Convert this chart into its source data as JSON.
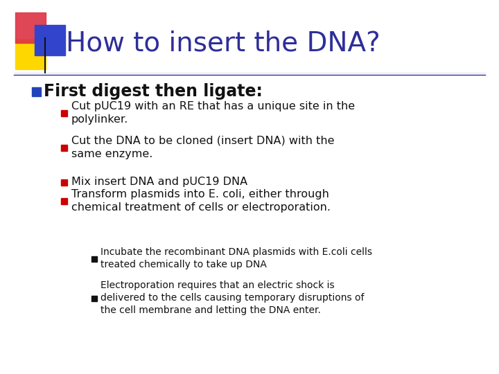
{
  "title": "How to insert the DNA?",
  "title_color": "#2E2E99",
  "bg_color": "#FFFFFF",
  "title_fontsize": 28,
  "bullet1": "First digest then ligate:",
  "bullet1_color": "#111111",
  "bullet1_fontsize": 17,
  "sub_bullets": [
    "Cut pUC19 with an RE that has a unique site in the\npolylinker.",
    "Cut the DNA to be cloned (insert DNA) with the\nsame enzyme.",
    "Mix insert DNA and pUC19 DNA",
    "Transform plasmids into E. coli, either through\nchemical treatment of cells or electroporation."
  ],
  "sub_bullet_color": "#111111",
  "sub_bullet_fontsize": 11.5,
  "sub_bullet_marker_color": "#CC0000",
  "subsub_bullets": [
    "Incubate the recombinant DNA plasmids with E.coli cells\ntreated chemically to take up DNA",
    "Electroporation requires that an electric shock is\ndelivered to the cells causing temporary disruptions of\nthe cell membrane and letting the DNA enter."
  ],
  "subsub_bullet_color": "#111111",
  "subsub_bullet_fontsize": 10,
  "subsub_bullet_marker_color": "#111111",
  "line_color": "#2E2E99",
  "bullet1_marker_color": "#2244BB"
}
